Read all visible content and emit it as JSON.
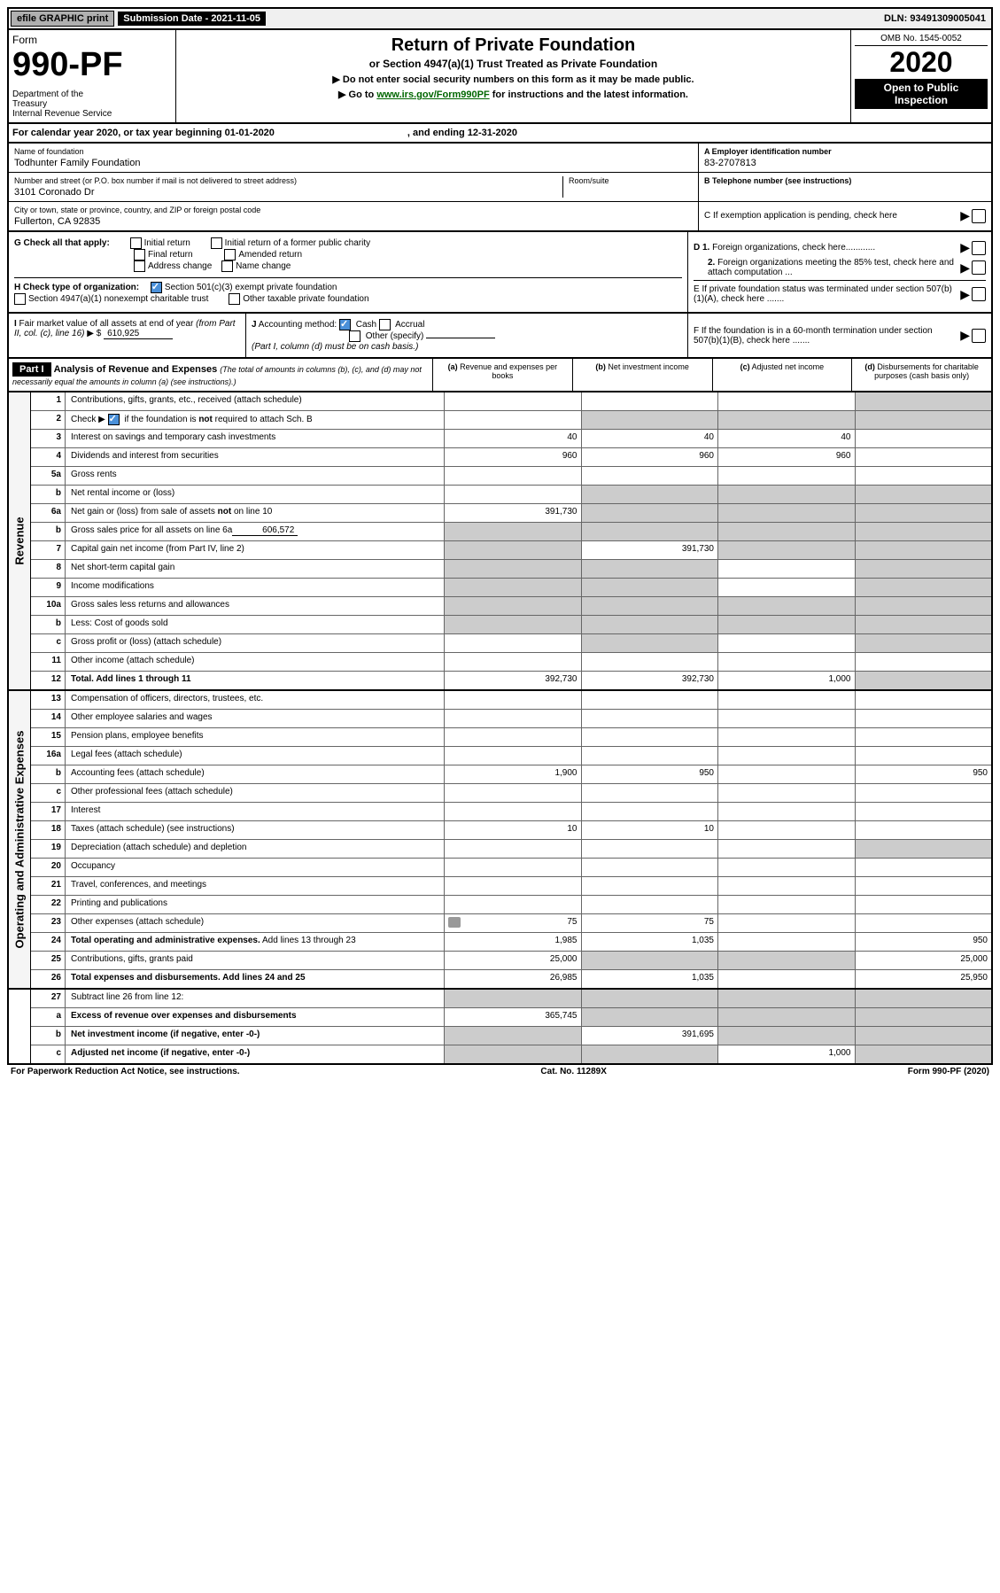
{
  "top_bar": {
    "efile": "efile GRAPHIC print",
    "submission": "Submission Date - 2021-11-05",
    "dln": "DLN: 93491309005041"
  },
  "header": {
    "form_word": "Form",
    "form_number": "990-PF",
    "dept": "Department of the Treasury\nInternal Revenue Service",
    "title": "Return of Private Foundation",
    "subtitle": "or Section 4947(a)(1) Trust Treated as Private Foundation",
    "note1": "▶ Do not enter social security numbers on this form as it may be made public.",
    "note2_pre": "▶ Go to ",
    "note2_link": "www.irs.gov/Form990PF",
    "note2_post": " for instructions and the latest information.",
    "omb": "OMB No. 1545-0052",
    "year": "2020",
    "open": "Open to Public Inspection"
  },
  "calendar": {
    "text1": "For calendar year 2020, or tax year beginning 01-01-2020",
    "text2": ", and ending 12-31-2020"
  },
  "info": {
    "name_label": "Name of foundation",
    "name": "Todhunter Family Foundation",
    "street_label": "Number and street (or P.O. box number if mail is not delivered to street address)",
    "street": "3101 Coronado Dr",
    "room_label": "Room/suite",
    "city_label": "City or town, state or province, country, and ZIP or foreign postal code",
    "city": "Fullerton, CA  92835",
    "a_label": "A Employer identification number",
    "a_value": "83-2707813",
    "b_label": "B Telephone number (see instructions)",
    "c_label": "C If exemption application is pending, check here"
  },
  "g_section": {
    "label": "G Check all that apply:",
    "opts": [
      "Initial return",
      "Final return",
      "Address change",
      "Initial return of a former public charity",
      "Amended return",
      "Name change"
    ]
  },
  "h_section": {
    "label": "H Check type of organization:",
    "opts": [
      "Section 501(c)(3) exempt private foundation",
      "Section 4947(a)(1) nonexempt charitable trust",
      "Other taxable private foundation"
    ]
  },
  "d_section": {
    "d1": "D 1. Foreign organizations, check here............",
    "d2": "2. Foreign organizations meeting the 85% test, check here and attach computation ..."
  },
  "e_section": "E If private foundation status was terminated under section 507(b)(1)(A), check here .......",
  "i_section": {
    "label": "I Fair market value of all assets at end of year (from Part II, col. (c),",
    "line": "line 16) ▶ $",
    "value": "610,925"
  },
  "j_section": {
    "label": "J Accounting method:",
    "cash": "Cash",
    "accrual": "Accrual",
    "other": "Other (specify)",
    "note": "(Part I, column (d) must be on cash basis.)"
  },
  "f_section": "F If the foundation is in a 60-month termination under section 507(b)(1)(B), check here .......",
  "part1": {
    "label": "Part I",
    "title": "Analysis of Revenue and Expenses",
    "sub": "(The total of amounts in columns (b), (c), and (d) may not necessarily equal the amounts in column (a) (see instructions).)",
    "cols": [
      "(a) Revenue and expenses per books",
      "(b) Net investment income",
      "(c) Adjusted net income",
      "(d) Disbursements for charitable purposes (cash basis only)"
    ]
  },
  "side_labels": [
    "Revenue",
    "Operating and Administrative Expenses"
  ],
  "rows": [
    {
      "num": "1",
      "desc": "Contributions, gifts, grants, etc., received (attach schedule)",
      "a": "",
      "b": "",
      "c": "",
      "d": "",
      "d_gray": true
    },
    {
      "num": "2",
      "desc": "Check ▶ ☑ if the foundation is not required to attach Sch. B",
      "a": "",
      "b": "",
      "c": "",
      "d": "",
      "bc_gray": true,
      "d_gray": true
    },
    {
      "num": "3",
      "desc": "Interest on savings and temporary cash investments",
      "a": "40",
      "b": "40",
      "c": "40",
      "d": ""
    },
    {
      "num": "4",
      "desc": "Dividends and interest from securities",
      "a": "960",
      "b": "960",
      "c": "960",
      "d": ""
    },
    {
      "num": "5a",
      "desc": "Gross rents",
      "a": "",
      "b": "",
      "c": "",
      "d": ""
    },
    {
      "num": "b",
      "desc": "Net rental income or (loss)",
      "a": "",
      "b": "",
      "c": "",
      "d": "",
      "bcd_gray": true
    },
    {
      "num": "6a",
      "desc": "Net gain or (loss) from sale of assets not on line 10",
      "a": "391,730",
      "b": "",
      "c": "",
      "d": "",
      "bcd_gray": true
    },
    {
      "num": "b",
      "desc": "Gross sales price for all assets on line 6a",
      "inline": "606,572",
      "a": "",
      "b": "",
      "c": "",
      "d": "",
      "abcd_gray": true
    },
    {
      "num": "7",
      "desc": "Capital gain net income (from Part IV, line 2)",
      "a": "",
      "b": "391,730",
      "c": "",
      "d": "",
      "a_gray": true,
      "cd_gray": true
    },
    {
      "num": "8",
      "desc": "Net short-term capital gain",
      "a": "",
      "b": "",
      "c": "",
      "d": "",
      "ab_gray": true,
      "d_gray": true
    },
    {
      "num": "9",
      "desc": "Income modifications",
      "a": "",
      "b": "",
      "c": "",
      "d": "",
      "ab_gray": true,
      "d_gray": true
    },
    {
      "num": "10a",
      "desc": "Gross sales less returns and allowances",
      "a": "",
      "b": "",
      "c": "",
      "d": "",
      "abcd_gray": true
    },
    {
      "num": "b",
      "desc": "Less: Cost of goods sold",
      "a": "",
      "b": "",
      "c": "",
      "d": "",
      "abcd_gray": true
    },
    {
      "num": "c",
      "desc": "Gross profit or (loss) (attach schedule)",
      "a": "",
      "b": "",
      "c": "",
      "d": "",
      "b_gray": true,
      "d_gray": true
    },
    {
      "num": "11",
      "desc": "Other income (attach schedule)",
      "a": "",
      "b": "",
      "c": "",
      "d": ""
    },
    {
      "num": "12",
      "desc": "Total. Add lines 1 through 11",
      "bold": true,
      "a": "392,730",
      "b": "392,730",
      "c": "1,000",
      "d": "",
      "d_gray": true
    }
  ],
  "exp_rows": [
    {
      "num": "13",
      "desc": "Compensation of officers, directors, trustees, etc.",
      "a": "",
      "b": "",
      "c": "",
      "d": ""
    },
    {
      "num": "14",
      "desc": "Other employee salaries and wages",
      "a": "",
      "b": "",
      "c": "",
      "d": ""
    },
    {
      "num": "15",
      "desc": "Pension plans, employee benefits",
      "a": "",
      "b": "",
      "c": "",
      "d": ""
    },
    {
      "num": "16a",
      "desc": "Legal fees (attach schedule)",
      "a": "",
      "b": "",
      "c": "",
      "d": ""
    },
    {
      "num": "b",
      "desc": "Accounting fees (attach schedule)",
      "a": "1,900",
      "b": "950",
      "c": "",
      "d": "950"
    },
    {
      "num": "c",
      "desc": "Other professional fees (attach schedule)",
      "a": "",
      "b": "",
      "c": "",
      "d": ""
    },
    {
      "num": "17",
      "desc": "Interest",
      "a": "",
      "b": "",
      "c": "",
      "d": ""
    },
    {
      "num": "18",
      "desc": "Taxes (attach schedule) (see instructions)",
      "a": "10",
      "b": "10",
      "c": "",
      "d": ""
    },
    {
      "num": "19",
      "desc": "Depreciation (attach schedule) and depletion",
      "a": "",
      "b": "",
      "c": "",
      "d": "",
      "d_gray": true
    },
    {
      "num": "20",
      "desc": "Occupancy",
      "a": "",
      "b": "",
      "c": "",
      "d": ""
    },
    {
      "num": "21",
      "desc": "Travel, conferences, and meetings",
      "a": "",
      "b": "",
      "c": "",
      "d": ""
    },
    {
      "num": "22",
      "desc": "Printing and publications",
      "a": "",
      "b": "",
      "c": "",
      "d": ""
    },
    {
      "num": "23",
      "desc": "Other expenses (attach schedule)",
      "icon": true,
      "a": "75",
      "b": "75",
      "c": "",
      "d": ""
    },
    {
      "num": "24",
      "desc": "Total operating and administrative expenses. Add lines 13 through 23",
      "bold_first": true,
      "a": "1,985",
      "b": "1,035",
      "c": "",
      "d": "950"
    },
    {
      "num": "25",
      "desc": "Contributions, gifts, grants paid",
      "a": "25,000",
      "b": "",
      "c": "",
      "d": "25,000",
      "bc_gray": true
    },
    {
      "num": "26",
      "desc": "Total expenses and disbursements. Add lines 24 and 25",
      "bold": true,
      "a": "26,985",
      "b": "1,035",
      "c": "",
      "d": "25,950"
    }
  ],
  "final_rows": [
    {
      "num": "27",
      "desc": "Subtract line 26 from line 12:",
      "a": "",
      "b": "",
      "c": "",
      "d": "",
      "abcd_gray": true
    },
    {
      "num": "a",
      "desc": "Excess of revenue over expenses and disbursements",
      "bold": true,
      "a": "365,745",
      "b": "",
      "c": "",
      "d": "",
      "bcd_gray": true
    },
    {
      "num": "b",
      "desc": "Net investment income (if negative, enter -0-)",
      "bold": true,
      "a": "",
      "b": "391,695",
      "c": "",
      "d": "",
      "a_gray": true,
      "cd_gray": true
    },
    {
      "num": "c",
      "desc": "Adjusted net income (if negative, enter -0-)",
      "bold": true,
      "a": "",
      "b": "",
      "c": "1,000",
      "d": "",
      "ab_gray": true,
      "d_gray": true
    }
  ],
  "footer": {
    "left": "For Paperwork Reduction Act Notice, see instructions.",
    "mid": "Cat. No. 11289X",
    "right": "Form 990-PF (2020)"
  }
}
